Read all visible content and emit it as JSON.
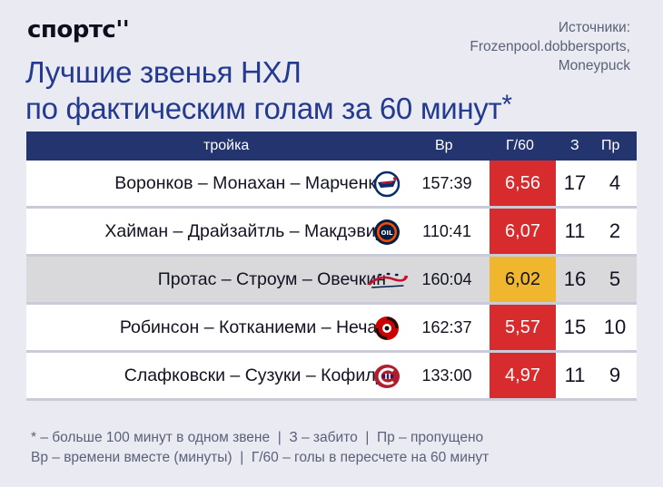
{
  "brand": {
    "logo_text": "спортс",
    "logo_mark": "''"
  },
  "sources": {
    "label": "Источники:",
    "line1": "Frozenpool.dobbersports,",
    "line2": "Moneypuck"
  },
  "title": {
    "line1": "Лучшие звенья НХЛ",
    "line2": "по фактическим голам за 60 минут",
    "asterisk": "*"
  },
  "table": {
    "headers": {
      "trio": "тройка",
      "time": "Вр",
      "gpm": "Г/60",
      "scored": "З",
      "allowed": "Пр"
    },
    "rows": [
      {
        "trio": "Воронков – Монахан – Марченко",
        "team_icon": "columbus-blue-jackets-logo-icon",
        "time": "157:39",
        "gpm": "6,56",
        "scored": "17",
        "allowed": "4"
      },
      {
        "trio": "Хайман – Драйзайтль – Макдэвид",
        "team_icon": "edmonton-oilers-logo-icon",
        "time": "110:41",
        "gpm": "6,07",
        "scored": "11",
        "allowed": "2"
      },
      {
        "trio": "Протас – Строум – Овечкин",
        "team_icon": "washington-capitals-logo-icon",
        "time": "160:04",
        "gpm": "6,02",
        "scored": "16",
        "allowed": "5"
      },
      {
        "trio": "Робинсон – Котканиеми – Нечас",
        "team_icon": "carolina-hurricanes-logo-icon",
        "time": "162:37",
        "gpm": "5,57",
        "scored": "15",
        "allowed": "10"
      },
      {
        "trio": "Слафковски – Сузуки – Кофилд",
        "team_icon": "montreal-canadiens-logo-icon",
        "time": "133:00",
        "gpm": "4,97",
        "scored": "11",
        "allowed": "9"
      }
    ],
    "highlight_color": "#f0b72e",
    "gpm_color": "#d82b2e",
    "header_color": "#24346f"
  },
  "footnote": {
    "line1": "* – больше 100 минут в одном звене  |  З – забито  |  Пр – пропущено",
    "line2": "Вр – времени вместе (минуты)  |  Г/60 – голы в пересчете на 60 минут"
  }
}
